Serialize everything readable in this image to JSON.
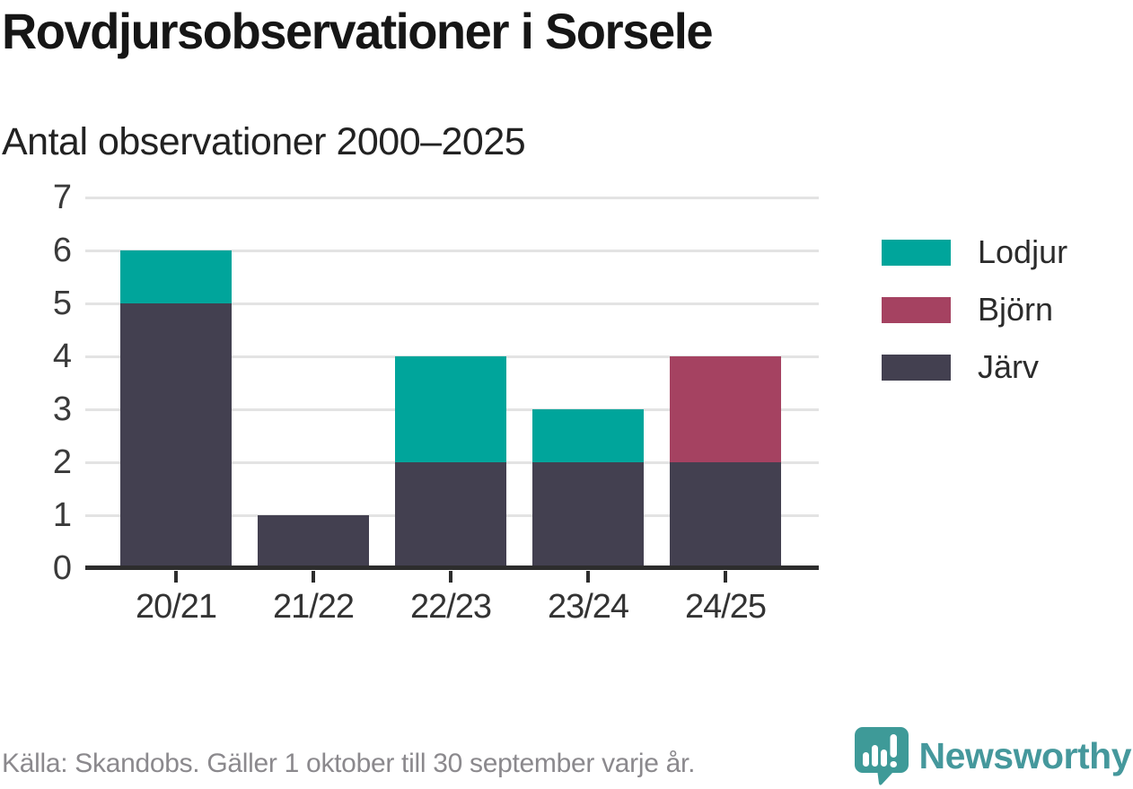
{
  "header": {
    "title": "Rovdjursobservationer i Sorsele",
    "subtitle": "Antal observationer 2000–2025"
  },
  "chart_data": {
    "type": "bar",
    "stacked": true,
    "title": "Rovdjursobservationer i Sorsele",
    "subtitle": "Antal observationer 2000–2025",
    "categories": [
      "20/21",
      "21/22",
      "22/23",
      "23/24",
      "24/25"
    ],
    "series": [
      {
        "name": "Lodjur",
        "color": "#00a59b",
        "values": [
          1,
          0,
          2,
          1,
          0
        ]
      },
      {
        "name": "Björn",
        "color": "#a54261",
        "values": [
          0,
          0,
          0,
          0,
          2
        ]
      },
      {
        "name": "Järv",
        "color": "#434050",
        "values": [
          5,
          1,
          2,
          2,
          2
        ]
      }
    ],
    "totals": [
      6,
      1,
      4,
      3,
      4
    ],
    "xlabel": "",
    "ylabel": "",
    "ylim": [
      0,
      7
    ],
    "yticks": [
      0,
      1,
      2,
      3,
      4,
      5,
      6,
      7
    ],
    "grid": true,
    "legend_position": "right",
    "stack_order_bottom_to_top": [
      "Järv",
      "Björn",
      "Lodjur"
    ]
  },
  "footer": {
    "source": "Källa: Skandobs. Gäller 1 oktober till 30 september varje år.",
    "brand": "Newsworthy"
  },
  "colors": {
    "accent_teal": "#00a59b",
    "maroon": "#a54261",
    "dark_slate": "#434050",
    "gridline": "#e3e3e3",
    "axis": "#2d2d2d",
    "brand_teal": "#45989c"
  }
}
